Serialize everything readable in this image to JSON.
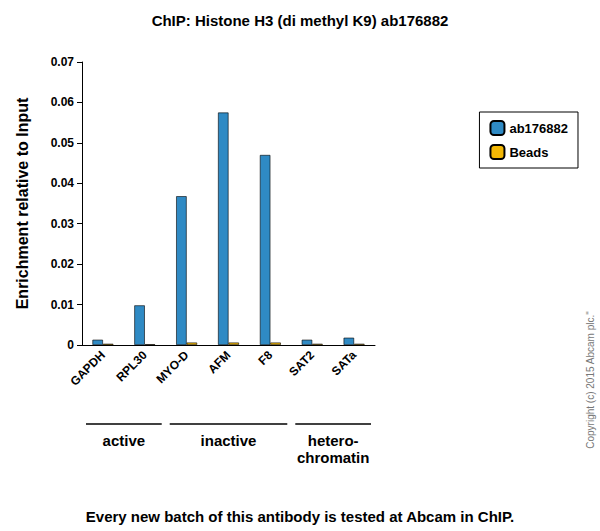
{
  "chart_data": {
    "type": "bar",
    "title": "ChIP: Histone H3 (di methyl K9) ab176882",
    "y_label": "Enrichment relative to Input",
    "categories": [
      "GAPDH",
      "RPL30",
      "MYO-D",
      "AFM",
      "F8",
      "SAT2",
      "SATa"
    ],
    "series": [
      {
        "name": "ab176882",
        "color": "#2f8ac4",
        "values": [
          0.0013,
          0.0098,
          0.0368,
          0.0575,
          0.047,
          0.0013,
          0.0018
        ]
      },
      {
        "name": "Beads",
        "color": "#f2b705",
        "values": [
          0.0003,
          0.0002,
          0.0006,
          0.0006,
          0.0006,
          0.0003,
          0.0003
        ]
      }
    ],
    "ylim": [
      0,
      0.07
    ],
    "yticks": [
      0,
      0.01,
      0.02,
      0.03,
      0.04,
      0.05,
      0.06,
      0.07
    ],
    "grid": false,
    "legend": "right",
    "groups": [
      {
        "label": "active",
        "categories": [
          "GAPDH",
          "RPL30"
        ]
      },
      {
        "label": "inactive",
        "categories": [
          "MYO-D",
          "AFM",
          "F8"
        ]
      },
      {
        "label": "hetero-chromatin",
        "categories": [
          "SAT2",
          "SATa"
        ]
      }
    ],
    "annotations": [
      "Every new batch of this antibody is tested at Abcam in ChIP.",
      "Copyright (c) 2015 Abcam plc.\""
    ]
  }
}
